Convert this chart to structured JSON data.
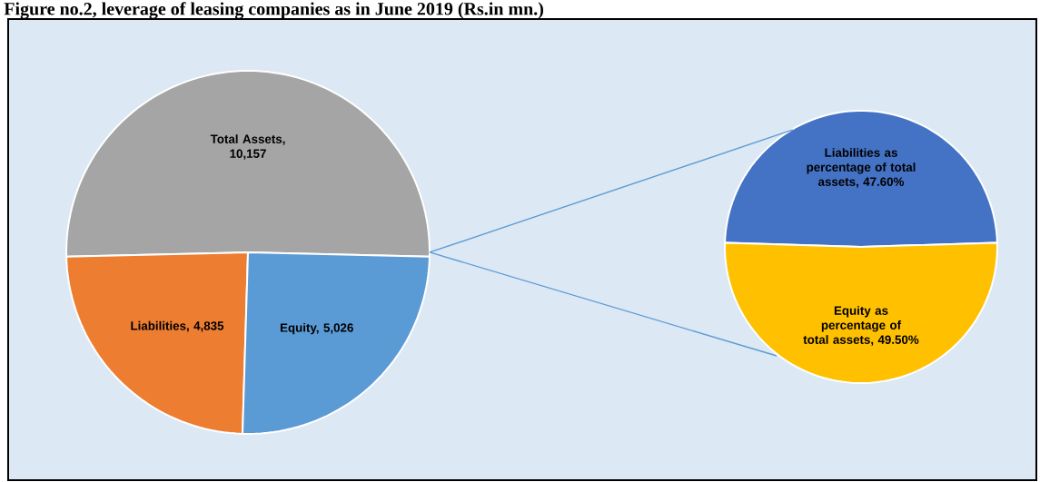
{
  "chart_data": [
    {
      "type": "pie",
      "title": "Figure no.2, leverage of leasing companies as in June 2019 (Rs.in mn.)",
      "categories": [
        "Total Assets, 10,157",
        "Liabilities, 4,835",
        "Equity, 5,026"
      ],
      "values": [
        10157,
        4835,
        5026
      ],
      "colors": [
        "#a5a5a5",
        "#ed7d31",
        "#5b9bd5"
      ]
    },
    {
      "type": "pie",
      "categories": [
        "Liabilities as percentage of total assets, 47.60%",
        "Equity as percentage of total assets, 49.50%"
      ],
      "values": [
        47.6,
        49.5
      ],
      "colors": [
        "#4472c4",
        "#ffc000"
      ]
    }
  ]
}
